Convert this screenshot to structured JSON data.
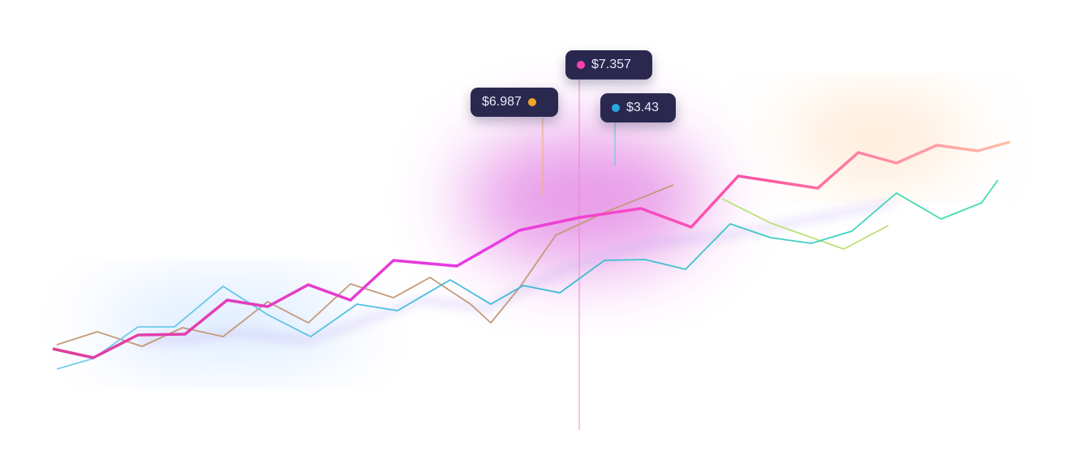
{
  "tooltips": [
    {
      "label": "$6.987"
    },
    {
      "label": "$7.357"
    },
    {
      "label": "$3.43"
    }
  ]
}
